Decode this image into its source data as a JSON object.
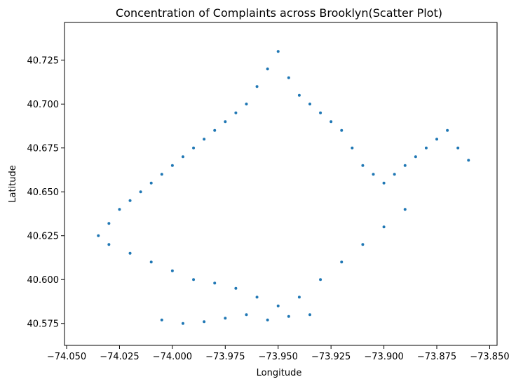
{
  "chart_data": {
    "type": "scatter",
    "title": "Concentration of Complaints across Brooklyn(Scatter Plot)",
    "xlabel": "Longitude",
    "ylabel": "Latitude",
    "xlim": [
      -74.051,
      -73.8465
    ],
    "ylim": [
      40.5625,
      40.7465
    ],
    "xticks": [
      -74.05,
      -74.025,
      -74.0,
      -73.975,
      -73.95,
      -73.925,
      -73.9,
      -73.875,
      -73.85
    ],
    "xtick_labels": [
      "−74.050",
      "−74.025",
      "−74.000",
      "−73.975",
      "−73.950",
      "−73.925",
      "−73.900",
      "−73.875",
      "−73.850"
    ],
    "yticks": [
      40.575,
      40.6,
      40.625,
      40.65,
      40.675,
      40.7,
      40.725
    ],
    "ytick_labels": [
      "40.575",
      "40.600",
      "40.625",
      "40.650",
      "40.675",
      "40.700",
      "40.725"
    ],
    "grid": false,
    "marker_color": "#1f77b4",
    "series": [
      {
        "x": [
          -74.035,
          -74.03,
          -74.025,
          -74.02,
          -74.015,
          -74.01,
          -74.005,
          -74.0,
          -73.995,
          -73.99,
          -73.985,
          -73.98,
          -73.975,
          -73.97,
          -73.965,
          -73.96,
          -73.955,
          -73.95,
          -73.945,
          -73.94,
          -73.935,
          -73.93,
          -73.925,
          -73.92,
          -73.915,
          -73.91,
          -73.905,
          -73.9,
          -73.895,
          -73.89,
          -73.885,
          -73.88,
          -73.875,
          -73.87,
          -73.865,
          -73.86
        ],
        "y": [
          40.625,
          40.632,
          40.64,
          40.645,
          40.65,
          40.655,
          40.66,
          40.665,
          40.67,
          40.675,
          40.68,
          40.685,
          40.69,
          40.695,
          40.7,
          40.71,
          40.72,
          40.73,
          40.715,
          40.705,
          40.7,
          40.695,
          40.69,
          40.685,
          40.675,
          40.665,
          40.66,
          40.655,
          40.66,
          40.665,
          40.67,
          40.675,
          40.68,
          40.685,
          40.675,
          40.668
        ]
      },
      {
        "x": [
          -74.03,
          -74.02,
          -74.01,
          -74.0,
          -73.99,
          -73.98,
          -73.97,
          -73.96,
          -73.95,
          -73.94,
          -73.93,
          -73.92,
          -73.91,
          -73.9,
          -73.89
        ],
        "y": [
          40.62,
          40.615,
          40.61,
          40.605,
          40.6,
          40.598,
          40.595,
          40.59,
          40.585,
          40.59,
          40.6,
          40.61,
          40.62,
          40.63,
          40.64
        ]
      },
      {
        "x": [
          -74.005,
          -73.995,
          -73.985,
          -73.975,
          -73.965,
          -73.955,
          -73.945,
          -73.935
        ],
        "y": [
          40.577,
          40.575,
          40.576,
          40.578,
          40.58,
          40.577,
          40.579,
          40.58
        ]
      }
    ]
  }
}
